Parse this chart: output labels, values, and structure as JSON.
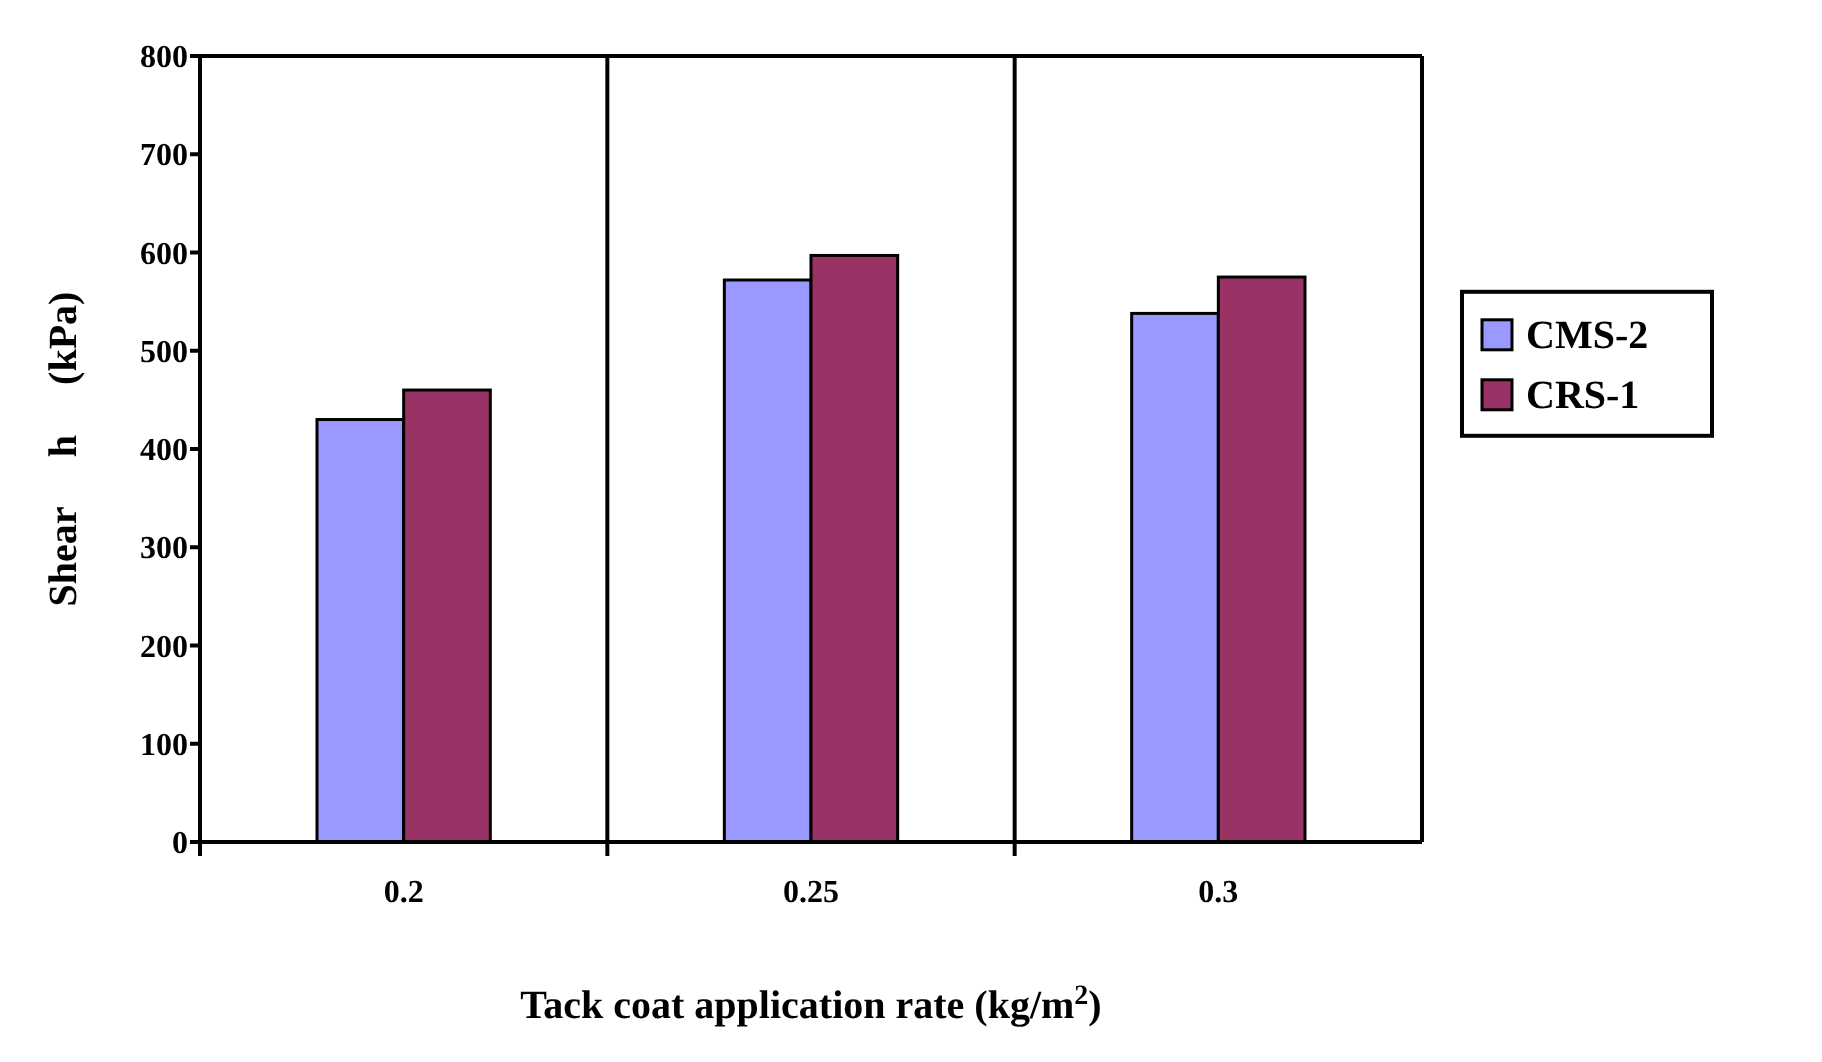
{
  "chart_data": {
    "type": "bar",
    "xlabel": "Tack coat application rate (kg/m$^{2}$)",
    "ylabel": "Shear     h     (kPa)",
    "categories": [
      "0.2",
      "0.25",
      "0.3"
    ],
    "series": [
      {
        "name": "CMS-2",
        "color": "#9999ff",
        "values": [
          430,
          572,
          538
        ]
      },
      {
        "name": "CRS-1",
        "color": "#993366",
        "values": [
          460,
          597,
          575
        ]
      }
    ],
    "ylim": [
      0,
      800
    ],
    "yticks": [
      0,
      100,
      200,
      300,
      400,
      500,
      600,
      700,
      800
    ],
    "grid": "x",
    "legend": "right"
  }
}
